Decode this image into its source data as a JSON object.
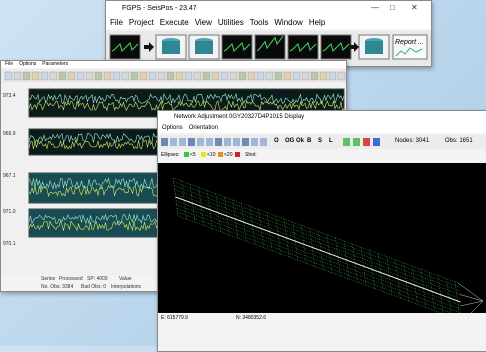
{
  "main_window": {
    "title": "FGPS - SeisPos - 23.47",
    "menu": [
      "File",
      "Project",
      "Execute",
      "View",
      "Utilities",
      "Tools",
      "Window",
      "Help"
    ],
    "report_button": "Report ..."
  },
  "seismic_window": {
    "menu": [
      "File",
      "Options",
      "Parameters"
    ],
    "trace_labels": [
      "973.4",
      "969.9",
      "967.1",
      "971.0",
      "970.1"
    ],
    "status": [
      "Series",
      "Processed",
      "SP: 4003",
      "Value",
      "No. Obs: 3384",
      "Bad Obs: 0",
      "Interpolations"
    ]
  },
  "network_window": {
    "title": "Network Adjustment 0GY20327D4P1015 Display",
    "menu": [
      "Options",
      "Orientation"
    ],
    "tool_buttons": [
      "O",
      "OG",
      "Ok",
      "B",
      "S",
      "L"
    ],
    "nodes": "Nodes: 3041",
    "obs": "Obs: 1651",
    "ellipses_label": "Ellipses:",
    "ellipse_legend": [
      {
        "label": "<5",
        "color": "#2ecc40"
      },
      {
        "label": "<10",
        "color": "#f1e20f"
      },
      {
        "label": "<20",
        "color": "#f08a24"
      }
    ],
    "shots_label": "Shot:",
    "shots_color": "#d62020",
    "status": [
      "E: 615779.9",
      "N: 3480352.6"
    ]
  }
}
